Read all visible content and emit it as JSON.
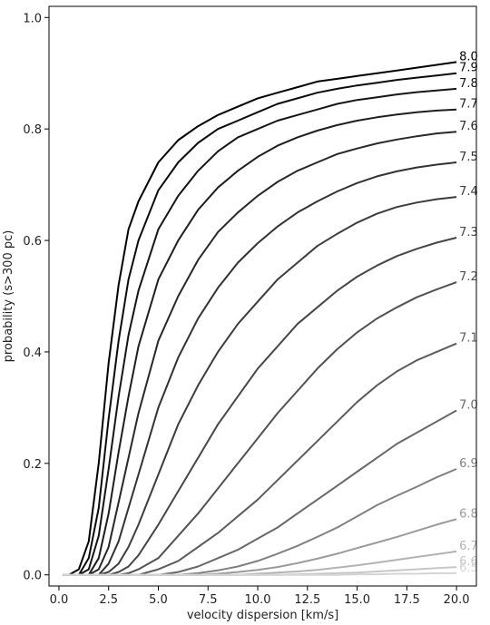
{
  "chart_data": {
    "type": "line",
    "title": "",
    "xlabel": "velocity dispersion [km/s]",
    "ylabel": "probability (s>300 pc)",
    "xlim": [
      -0.5,
      21.0
    ],
    "ylim": [
      -0.02,
      1.02
    ],
    "xticks": [
      "0.0",
      "2.5",
      "5.0",
      "7.5",
      "10.0",
      "12.5",
      "15.0",
      "17.5",
      "20.0"
    ],
    "yticks": [
      "0.0",
      "0.2",
      "0.4",
      "0.6",
      "0.8",
      "1.0"
    ],
    "grid": false,
    "legend": "none (curve labels at right end of each line)",
    "x": [
      0.2,
      0.5,
      1.0,
      1.5,
      2.0,
      2.5,
      3.0,
      3.5,
      4.0,
      5.0,
      6.0,
      7.0,
      8.0,
      9.0,
      10.0,
      11.0,
      12.0,
      13.0,
      14.0,
      15.0,
      16.0,
      17.0,
      18.0,
      19.0,
      20.0
    ],
    "series": [
      {
        "name": "8.0",
        "color": "#000000",
        "values": [
          0.0,
          0.0,
          0.01,
          0.06,
          0.2,
          0.38,
          0.52,
          0.62,
          0.67,
          0.74,
          0.78,
          0.805,
          0.825,
          0.84,
          0.855,
          0.865,
          0.875,
          0.885,
          0.89,
          0.895,
          0.9,
          0.905,
          0.91,
          0.915,
          0.92
        ]
      },
      {
        "name": "7.9",
        "color": "#0b0b0b",
        "values": [
          0.0,
          0.0,
          0.0,
          0.03,
          0.12,
          0.28,
          0.42,
          0.53,
          0.6,
          0.69,
          0.74,
          0.775,
          0.8,
          0.815,
          0.83,
          0.845,
          0.855,
          0.865,
          0.872,
          0.878,
          0.883,
          0.888,
          0.892,
          0.896,
          0.9
        ]
      },
      {
        "name": "7.8",
        "color": "#151515",
        "values": [
          0.0,
          0.0,
          0.0,
          0.01,
          0.07,
          0.19,
          0.32,
          0.43,
          0.51,
          0.62,
          0.68,
          0.725,
          0.76,
          0.785,
          0.8,
          0.815,
          0.825,
          0.835,
          0.845,
          0.852,
          0.857,
          0.862,
          0.866,
          0.869,
          0.872
        ]
      },
      {
        "name": "7.7",
        "color": "#1e1e1e",
        "values": [
          0.0,
          0.0,
          0.0,
          0.0,
          0.03,
          0.11,
          0.22,
          0.32,
          0.41,
          0.53,
          0.6,
          0.655,
          0.695,
          0.725,
          0.75,
          0.77,
          0.785,
          0.797,
          0.807,
          0.815,
          0.821,
          0.826,
          0.83,
          0.833,
          0.835
        ]
      },
      {
        "name": "7.6",
        "color": "#282828",
        "values": [
          0.0,
          0.0,
          0.0,
          0.0,
          0.01,
          0.05,
          0.13,
          0.21,
          0.29,
          0.42,
          0.5,
          0.565,
          0.615,
          0.65,
          0.68,
          0.705,
          0.725,
          0.74,
          0.755,
          0.765,
          0.774,
          0.781,
          0.787,
          0.792,
          0.795
        ]
      },
      {
        "name": "7.5",
        "color": "#323232",
        "values": [
          0.0,
          0.0,
          0.0,
          0.0,
          0.0,
          0.02,
          0.06,
          0.12,
          0.18,
          0.3,
          0.39,
          0.46,
          0.515,
          0.56,
          0.595,
          0.625,
          0.65,
          0.67,
          0.688,
          0.703,
          0.715,
          0.724,
          0.731,
          0.736,
          0.74
        ]
      },
      {
        "name": "7.4",
        "color": "#3c3c3c",
        "values": [
          0.0,
          0.0,
          0.0,
          0.0,
          0.0,
          0.005,
          0.02,
          0.05,
          0.09,
          0.18,
          0.27,
          0.34,
          0.4,
          0.45,
          0.49,
          0.53,
          0.56,
          0.59,
          0.612,
          0.632,
          0.648,
          0.66,
          0.668,
          0.674,
          0.678
        ]
      },
      {
        "name": "7.3",
        "color": "#464646",
        "values": [
          0.0,
          0.0,
          0.0,
          0.0,
          0.0,
          0.0,
          0.005,
          0.015,
          0.035,
          0.09,
          0.15,
          0.21,
          0.27,
          0.32,
          0.37,
          0.41,
          0.45,
          0.48,
          0.51,
          0.535,
          0.555,
          0.572,
          0.585,
          0.596,
          0.605
        ]
      },
      {
        "name": "7.2",
        "color": "#515151",
        "values": [
          0.0,
          0.0,
          0.0,
          0.0,
          0.0,
          0.0,
          0.0,
          0.003,
          0.01,
          0.03,
          0.07,
          0.11,
          0.155,
          0.2,
          0.245,
          0.29,
          0.33,
          0.37,
          0.405,
          0.435,
          0.46,
          0.48,
          0.498,
          0.512,
          0.525
        ]
      },
      {
        "name": "7.1",
        "color": "#5c5c5c",
        "values": [
          0.0,
          0.0,
          0.0,
          0.0,
          0.0,
          0.0,
          0.0,
          0.0,
          0.0,
          0.01,
          0.025,
          0.05,
          0.075,
          0.105,
          0.135,
          0.17,
          0.205,
          0.24,
          0.275,
          0.31,
          0.34,
          0.365,
          0.385,
          0.4,
          0.415
        ]
      },
      {
        "name": "7.0",
        "color": "#686868",
        "values": [
          0.0,
          0.0,
          0.0,
          0.0,
          0.0,
          0.0,
          0.0,
          0.0,
          0.0,
          0.0,
          0.005,
          0.015,
          0.03,
          0.045,
          0.065,
          0.085,
          0.11,
          0.135,
          0.16,
          0.185,
          0.21,
          0.235,
          0.255,
          0.275,
          0.295
        ]
      },
      {
        "name": "6.9",
        "color": "#808080",
        "values": [
          0.0,
          0.0,
          0.0,
          0.0,
          0.0,
          0.0,
          0.0,
          0.0,
          0.0,
          0.0,
          0.0,
          0.003,
          0.008,
          0.015,
          0.025,
          0.038,
          0.052,
          0.068,
          0.085,
          0.105,
          0.125,
          0.142,
          0.158,
          0.175,
          0.19
        ]
      },
      {
        "name": "6.8",
        "color": "#9a9a9a",
        "values": [
          0.0,
          0.0,
          0.0,
          0.0,
          0.0,
          0.0,
          0.0,
          0.0,
          0.0,
          0.0,
          0.0,
          0.0,
          0.002,
          0.005,
          0.009,
          0.014,
          0.021,
          0.029,
          0.038,
          0.048,
          0.058,
          0.068,
          0.079,
          0.09,
          0.1
        ]
      },
      {
        "name": "6.7",
        "color": "#b3b3b3",
        "values": [
          0.0,
          0.0,
          0.0,
          0.0,
          0.0,
          0.0,
          0.0,
          0.0,
          0.0,
          0.0,
          0.0,
          0.0,
          0.0,
          0.0,
          0.002,
          0.004,
          0.006,
          0.009,
          0.013,
          0.017,
          0.022,
          0.027,
          0.032,
          0.037,
          0.042
        ]
      },
      {
        "name": "6.6",
        "color": "#c7c7c7",
        "values": [
          0.0,
          0.0,
          0.0,
          0.0,
          0.0,
          0.0,
          0.0,
          0.0,
          0.0,
          0.0,
          0.0,
          0.0,
          0.0,
          0.0,
          0.0,
          0.0,
          0.001,
          0.002,
          0.003,
          0.004,
          0.006,
          0.008,
          0.01,
          0.012,
          0.014
        ]
      },
      {
        "name": "6.5",
        "color": "#d5d5d5",
        "values": [
          0.0,
          0.0,
          0.0,
          0.0,
          0.0,
          0.0,
          0.0,
          0.0,
          0.0,
          0.0,
          0.0,
          0.0,
          0.0,
          0.0,
          0.0,
          0.0,
          0.0,
          0.0,
          0.0,
          0.001,
          0.001,
          0.002,
          0.002,
          0.003,
          0.003
        ]
      }
    ]
  }
}
